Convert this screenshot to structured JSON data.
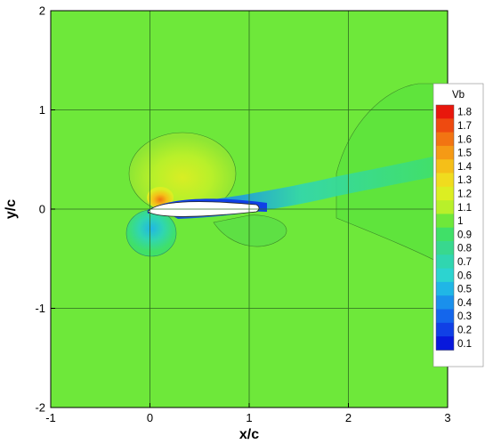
{
  "chart_data": {
    "type": "heatmap",
    "variable": "Vb",
    "xlabel": "x/c",
    "ylabel": "y/c",
    "xlim": [
      -1,
      3
    ],
    "ylim": [
      -2,
      2
    ],
    "x_ticks": [
      "-1",
      "0",
      "1",
      "2",
      "3"
    ],
    "y_ticks": [
      "2",
      "1",
      "0",
      "-1",
      "-2"
    ],
    "grid": true,
    "legend": {
      "title": "Vb",
      "placement": "right",
      "levels": [
        "1.8",
        "1.7",
        "1.6",
        "1.5",
        "1.4",
        "1.3",
        "1.2",
        "1.1",
        "1",
        "0.9",
        "0.8",
        "0.7",
        "0.6",
        "0.5",
        "0.4",
        "0.3",
        "0.2",
        "0.1"
      ],
      "colors": [
        "#e8170c",
        "#ee4a10",
        "#f27412",
        "#f59a15",
        "#f5bf18",
        "#f0dc1e",
        "#dcee22",
        "#b8f02a",
        "#6ee83a",
        "#40e068",
        "#38d88e",
        "#30d6b0",
        "#2cd4d0",
        "#20b6e6",
        "#1a90ec",
        "#1466ec",
        "#1040e6",
        "#0818dc"
      ]
    },
    "background_color": "#6ee83a"
  }
}
